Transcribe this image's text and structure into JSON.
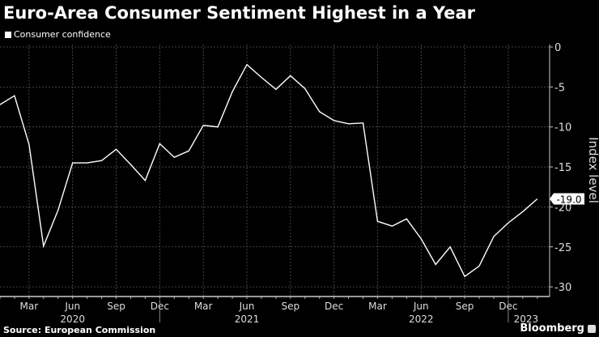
{
  "chart_data": {
    "type": "line",
    "title": "Euro-Area Consumer Sentiment Highest in a Year",
    "ylabel": "Index level",
    "ylim": [
      -30,
      0
    ],
    "yticks": [
      0,
      -5,
      -10,
      -15,
      -20,
      -25,
      -30
    ],
    "grid": true,
    "legend_position": "top-left",
    "xticks": [
      {
        "label": "Mar",
        "month": "2020-03"
      },
      {
        "label": "Jun",
        "month": "2020-06"
      },
      {
        "label": "Sep",
        "month": "2020-09"
      },
      {
        "label": "Dec",
        "month": "2020-12"
      },
      {
        "label": "Mar",
        "month": "2021-03"
      },
      {
        "label": "Jun",
        "month": "2021-06"
      },
      {
        "label": "Sep",
        "month": "2021-09"
      },
      {
        "label": "Dec",
        "month": "2021-12"
      },
      {
        "label": "Mar",
        "month": "2022-03"
      },
      {
        "label": "Jun",
        "month": "2022-06"
      },
      {
        "label": "Sep",
        "month": "2022-09"
      },
      {
        "label": "Dec",
        "month": "2022-12"
      }
    ],
    "year_labels": [
      {
        "label": "2020",
        "month": "2020-06"
      },
      {
        "label": "2021",
        "month": "2021-06"
      },
      {
        "label": "2022",
        "month": "2022-06"
      },
      {
        "label": "2023",
        "month": "2023-01"
      }
    ],
    "series": [
      {
        "name": "Consumer confidence",
        "color": "#ffffff",
        "x": [
          "2020-01",
          "2020-02",
          "2020-03",
          "2020-04",
          "2020-05",
          "2020-06",
          "2020-07",
          "2020-08",
          "2020-09",
          "2020-10",
          "2020-11",
          "2020-12",
          "2021-01",
          "2021-02",
          "2021-03",
          "2021-04",
          "2021-05",
          "2021-06",
          "2021-07",
          "2021-08",
          "2021-09",
          "2021-10",
          "2021-11",
          "2021-12",
          "2022-01",
          "2022-02",
          "2022-03",
          "2022-04",
          "2022-05",
          "2022-06",
          "2022-07",
          "2022-08",
          "2022-09",
          "2022-10",
          "2022-11",
          "2022-12",
          "2023-01",
          "2023-02"
        ],
        "values": [
          -7.2,
          -6.1,
          -12.2,
          -24.9,
          -20.4,
          -14.5,
          -14.5,
          -14.2,
          -12.8,
          -14.7,
          -16.7,
          -12.1,
          -13.8,
          -13.0,
          -9.8,
          -10.0,
          -5.6,
          -2.2,
          -3.8,
          -5.3,
          -3.6,
          -5.2,
          -8.1,
          -9.2,
          -9.6,
          -9.5,
          -21.8,
          -22.4,
          -21.5,
          -24.0,
          -27.2,
          -25.0,
          -28.7,
          -27.4,
          -23.7,
          -22.0,
          -20.6,
          -19.0
        ]
      }
    ],
    "last_value_label": "-19.0"
  },
  "legend": {
    "label": "Consumer confidence"
  },
  "source": "Source: European Commission",
  "brand": "Bloomberg"
}
